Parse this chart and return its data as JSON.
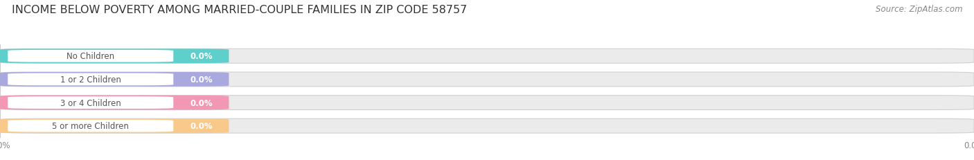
{
  "title": "INCOME BELOW POVERTY AMONG MARRIED-COUPLE FAMILIES IN ZIP CODE 58757",
  "source": "Source: ZipAtlas.com",
  "categories": [
    "No Children",
    "1 or 2 Children",
    "3 or 4 Children",
    "5 or more Children"
  ],
  "values": [
    0.0,
    0.0,
    0.0,
    0.0
  ],
  "bar_colors": [
    "#5ecfca",
    "#a9a9e0",
    "#f298b4",
    "#f8c98a"
  ],
  "bar_bg_color": "#ebebeb",
  "bg_color": "#ffffff",
  "title_fontsize": 11.5,
  "label_fontsize": 8.5,
  "value_fontsize": 8.5,
  "source_fontsize": 8.5,
  "tick_fontsize": 8.5
}
